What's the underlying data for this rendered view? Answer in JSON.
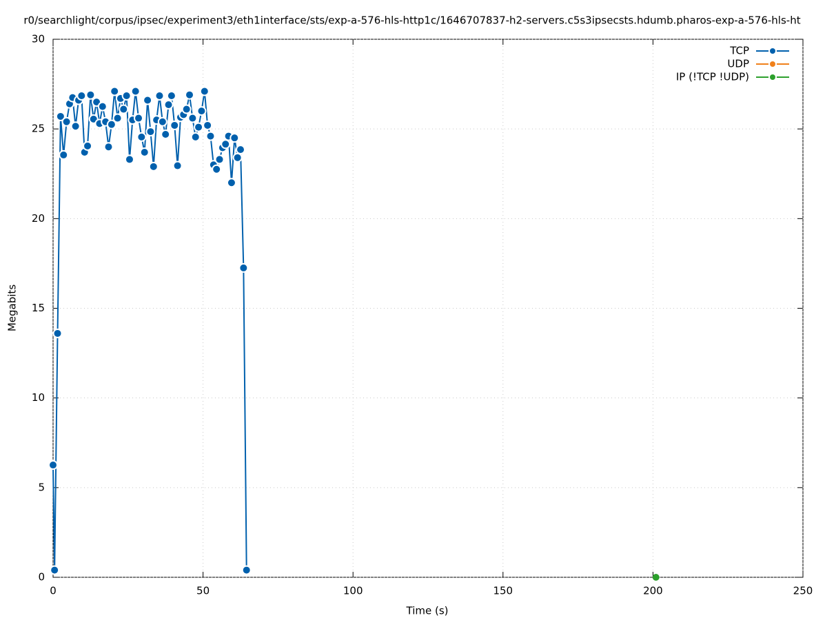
{
  "chart_data": {
    "type": "line",
    "title": "r0/searchlight/corpus/ipsec/experiment3/eth1interface/sts/exp-a-576-hls-http1c/1646707837-h2-servers.c5s3ipsecsts.hdumb.pharos-exp-a-576-hls-ht",
    "xlabel": "Time (s)",
    "ylabel": "Megabits",
    "xlim": [
      0,
      250
    ],
    "xticks": [
      0,
      50,
      100,
      150,
      200,
      250
    ],
    "ylim": [
      0,
      30
    ],
    "yticks": [
      0,
      5,
      10,
      15,
      20,
      25,
      30
    ],
    "grid": true,
    "legend": "top-right",
    "series": [
      {
        "name": "TCP",
        "color": "#0060ad",
        "x": [
          0,
          0.5,
          1.5,
          2.5,
          3.5,
          4.5,
          5.5,
          6.5,
          7.5,
          8.5,
          9.5,
          10.5,
          11.5,
          12.5,
          13.5,
          14.5,
          15.5,
          16.5,
          17.5,
          18.5,
          19.5,
          20.5,
          21.5,
          22.5,
          23.5,
          24.5,
          25.5,
          26.5,
          27.5,
          28.5,
          29.5,
          30.5,
          31.5,
          32.5,
          33.5,
          34.5,
          35.5,
          36.5,
          37.5,
          38.5,
          39.5,
          40.5,
          41.5,
          42.5,
          43.5,
          44.5,
          45.5,
          46.5,
          47.5,
          48.5,
          49.5,
          50.5,
          51.5,
          52.5,
          53.5,
          54.5,
          55.5,
          56.5,
          57.5,
          58.5,
          59.5,
          60.5,
          61.5,
          62.5,
          63.5,
          64.5
        ],
        "values": [
          6.26,
          0.4,
          13.6,
          25.7,
          23.55,
          25.4,
          26.4,
          26.75,
          25.15,
          26.6,
          26.85,
          23.7,
          24.05,
          26.9,
          25.55,
          26.5,
          25.3,
          26.25,
          25.4,
          24.0,
          25.25,
          27.1,
          25.6,
          26.7,
          26.1,
          26.85,
          23.3,
          25.5,
          27.1,
          25.6,
          24.55,
          23.7,
          26.6,
          24.85,
          22.9,
          25.5,
          26.85,
          25.4,
          24.7,
          26.35,
          26.85,
          25.2,
          22.95,
          25.65,
          25.8,
          26.1,
          26.9,
          25.6,
          24.55,
          25.1,
          26.0,
          27.1,
          25.2,
          24.6,
          23.0,
          22.75,
          23.3,
          23.95,
          24.15,
          24.6,
          22.0,
          24.5,
          23.4,
          23.85,
          17.25,
          0.4
        ]
      },
      {
        "name": "UDP",
        "color": "#f0801a",
        "x": [],
        "values": []
      },
      {
        "name": "IP (!TCP  !UDP)",
        "color": "#2ca02c",
        "x": [
          201
        ],
        "values": [
          0
        ]
      }
    ]
  }
}
